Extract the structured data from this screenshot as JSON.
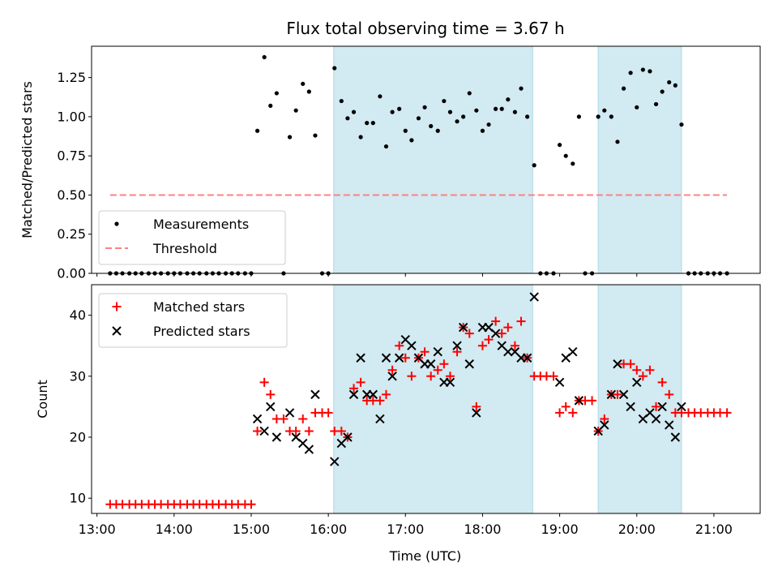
{
  "chart_data": [
    {
      "type": "scatter",
      "title": "Flux total observing time = 3.67 h",
      "xlabel": "",
      "ylabel": "Matched/Predicted stars",
      "xlim": [
        12.93,
        21.6
      ],
      "ylim": [
        0,
        1.45
      ],
      "yticks": [
        "0.00",
        "0.25",
        "0.50",
        "0.75",
        "1.00",
        "1.25"
      ],
      "shaded_regions": [
        [
          16.07,
          18.65
        ],
        [
          19.5,
          20.58
        ]
      ],
      "shaded_color": "#add8e6",
      "legend": {
        "position": "lower-left",
        "entries": [
          "Measurements",
          "Threshold"
        ]
      },
      "threshold": {
        "name": "Threshold",
        "value": 0.5,
        "x_range": [
          13.17,
          21.17
        ],
        "color": "#ff8080"
      },
      "series": [
        {
          "name": "Measurements",
          "marker": "dot",
          "color": "#000000",
          "points": [
            [
              13.17,
              0
            ],
            [
              13.25,
              0
            ],
            [
              13.33,
              0
            ],
            [
              13.42,
              0
            ],
            [
              13.5,
              0
            ],
            [
              13.58,
              0
            ],
            [
              13.67,
              0
            ],
            [
              13.75,
              0
            ],
            [
              13.83,
              0
            ],
            [
              13.92,
              0
            ],
            [
              14.0,
              0
            ],
            [
              14.08,
              0
            ],
            [
              14.17,
              0
            ],
            [
              14.25,
              0
            ],
            [
              14.33,
              0
            ],
            [
              14.42,
              0
            ],
            [
              14.5,
              0
            ],
            [
              14.58,
              0
            ],
            [
              14.67,
              0
            ],
            [
              14.75,
              0
            ],
            [
              14.83,
              0
            ],
            [
              14.92,
              0
            ],
            [
              15.0,
              0
            ],
            [
              15.08,
              0.91
            ],
            [
              15.17,
              1.38
            ],
            [
              15.25,
              1.07
            ],
            [
              15.33,
              1.15
            ],
            [
              15.42,
              0
            ],
            [
              15.5,
              0.87
            ],
            [
              15.58,
              1.04
            ],
            [
              15.67,
              1.21
            ],
            [
              15.75,
              1.16
            ],
            [
              15.83,
              0.88
            ],
            [
              15.92,
              0
            ],
            [
              16.0,
              0
            ],
            [
              16.08,
              1.31
            ],
            [
              16.17,
              1.1
            ],
            [
              16.25,
              0.99
            ],
            [
              16.33,
              1.03
            ],
            [
              16.42,
              0.87
            ],
            [
              16.5,
              0.96
            ],
            [
              16.58,
              0.96
            ],
            [
              16.67,
              1.13
            ],
            [
              16.75,
              0.81
            ],
            [
              16.83,
              1.03
            ],
            [
              16.92,
              1.05
            ],
            [
              17.0,
              0.91
            ],
            [
              17.08,
              0.85
            ],
            [
              17.17,
              0.99
            ],
            [
              17.25,
              1.06
            ],
            [
              17.33,
              0.94
            ],
            [
              17.42,
              0.91
            ],
            [
              17.5,
              1.1
            ],
            [
              17.58,
              1.03
            ],
            [
              17.67,
              0.97
            ],
            [
              17.75,
              1.0
            ],
            [
              17.83,
              1.15
            ],
            [
              17.92,
              1.04
            ],
            [
              18.0,
              0.91
            ],
            [
              18.08,
              0.95
            ],
            [
              18.17,
              1.05
            ],
            [
              18.25,
              1.05
            ],
            [
              18.33,
              1.11
            ],
            [
              18.42,
              1.03
            ],
            [
              18.5,
              1.18
            ],
            [
              18.58,
              1.0
            ],
            [
              18.67,
              0.69
            ],
            [
              18.75,
              0
            ],
            [
              18.83,
              0
            ],
            [
              18.92,
              0
            ],
            [
              19.0,
              0.82
            ],
            [
              19.08,
              0.75
            ],
            [
              19.17,
              0.7
            ],
            [
              19.25,
              1.0
            ],
            [
              19.33,
              0
            ],
            [
              19.42,
              0
            ],
            [
              19.5,
              1.0
            ],
            [
              19.58,
              1.04
            ],
            [
              19.67,
              1.0
            ],
            [
              19.75,
              0.84
            ],
            [
              19.83,
              1.18
            ],
            [
              19.92,
              1.28
            ],
            [
              20.0,
              1.06
            ],
            [
              20.08,
              1.3
            ],
            [
              20.17,
              1.29
            ],
            [
              20.25,
              1.08
            ],
            [
              20.33,
              1.16
            ],
            [
              20.42,
              1.22
            ],
            [
              20.5,
              1.2
            ],
            [
              20.58,
              0.95
            ],
            [
              20.67,
              0
            ],
            [
              20.75,
              0
            ],
            [
              20.83,
              0
            ],
            [
              20.92,
              0
            ],
            [
              21.0,
              0
            ],
            [
              21.08,
              0
            ],
            [
              21.17,
              0
            ]
          ]
        }
      ]
    },
    {
      "type": "scatter",
      "title": "",
      "xlabel": "Time (UTC)",
      "ylabel": "Count",
      "xlim": [
        12.93,
        21.6
      ],
      "ylim": [
        7.5,
        45
      ],
      "yticks": [
        "10",
        "20",
        "30",
        "40"
      ],
      "xticks": [
        {
          "value": 13,
          "label": "13:00"
        },
        {
          "value": 14,
          "label": "14:00"
        },
        {
          "value": 15,
          "label": "15:00"
        },
        {
          "value": 16,
          "label": "16:00"
        },
        {
          "value": 17,
          "label": "17:00"
        },
        {
          "value": 18,
          "label": "18:00"
        },
        {
          "value": 19,
          "label": "19:00"
        },
        {
          "value": 20,
          "label": "20:00"
        },
        {
          "value": 21,
          "label": "21:00"
        }
      ],
      "shaded_regions": [
        [
          16.07,
          18.65
        ],
        [
          19.5,
          20.58
        ]
      ],
      "shaded_color": "#add8e6",
      "legend": {
        "position": "top-left",
        "entries": [
          "Matched stars",
          "Predicted stars"
        ]
      },
      "series": [
        {
          "name": "Matched stars",
          "marker": "plus",
          "color": "#ff0000",
          "points": [
            [
              13.17,
              9
            ],
            [
              13.25,
              9
            ],
            [
              13.33,
              9
            ],
            [
              13.42,
              9
            ],
            [
              13.5,
              9
            ],
            [
              13.58,
              9
            ],
            [
              13.67,
              9
            ],
            [
              13.75,
              9
            ],
            [
              13.83,
              9
            ],
            [
              13.92,
              9
            ],
            [
              14.0,
              9
            ],
            [
              14.08,
              9
            ],
            [
              14.17,
              9
            ],
            [
              14.25,
              9
            ],
            [
              14.33,
              9
            ],
            [
              14.42,
              9
            ],
            [
              14.5,
              9
            ],
            [
              14.58,
              9
            ],
            [
              14.67,
              9
            ],
            [
              14.75,
              9
            ],
            [
              14.83,
              9
            ],
            [
              14.92,
              9
            ],
            [
              15.0,
              9
            ],
            [
              15.08,
              21
            ],
            [
              15.17,
              29
            ],
            [
              15.25,
              27
            ],
            [
              15.33,
              23
            ],
            [
              15.42,
              23
            ],
            [
              15.5,
              21
            ],
            [
              15.58,
              21
            ],
            [
              15.67,
              23
            ],
            [
              15.75,
              21
            ],
            [
              15.83,
              24
            ],
            [
              15.92,
              24
            ],
            [
              16.0,
              24
            ],
            [
              16.08,
              21
            ],
            [
              16.17,
              21
            ],
            [
              16.25,
              20
            ],
            [
              16.33,
              28
            ],
            [
              16.42,
              29
            ],
            [
              16.5,
              26
            ],
            [
              16.58,
              26
            ],
            [
              16.67,
              26
            ],
            [
              16.75,
              27
            ],
            [
              16.83,
              31
            ],
            [
              16.92,
              35
            ],
            [
              17.0,
              33
            ],
            [
              17.08,
              30
            ],
            [
              17.17,
              33
            ],
            [
              17.25,
              34
            ],
            [
              17.33,
              30
            ],
            [
              17.42,
              31
            ],
            [
              17.5,
              32
            ],
            [
              17.58,
              30
            ],
            [
              17.67,
              34
            ],
            [
              17.75,
              38
            ],
            [
              17.83,
              37
            ],
            [
              17.92,
              25
            ],
            [
              18.0,
              35
            ],
            [
              18.08,
              36
            ],
            [
              18.17,
              39
            ],
            [
              18.25,
              37
            ],
            [
              18.33,
              38
            ],
            [
              18.42,
              35
            ],
            [
              18.5,
              39
            ],
            [
              18.58,
              33
            ],
            [
              18.67,
              30
            ],
            [
              18.75,
              30
            ],
            [
              18.83,
              30
            ],
            [
              18.92,
              30
            ],
            [
              19.0,
              24
            ],
            [
              19.08,
              25
            ],
            [
              19.17,
              24
            ],
            [
              19.25,
              26
            ],
            [
              19.33,
              26
            ],
            [
              19.42,
              26
            ],
            [
              19.5,
              21
            ],
            [
              19.58,
              23
            ],
            [
              19.67,
              27
            ],
            [
              19.75,
              27
            ],
            [
              19.83,
              32
            ],
            [
              19.92,
              32
            ],
            [
              20.0,
              31
            ],
            [
              20.08,
              30
            ],
            [
              20.17,
              31
            ],
            [
              20.25,
              25
            ],
            [
              20.33,
              29
            ],
            [
              20.42,
              27
            ],
            [
              20.5,
              24
            ],
            [
              20.58,
              24
            ],
            [
              20.67,
              24
            ],
            [
              20.75,
              24
            ],
            [
              20.83,
              24
            ],
            [
              20.92,
              24
            ],
            [
              21.0,
              24
            ],
            [
              21.08,
              24
            ],
            [
              21.17,
              24
            ]
          ]
        },
        {
          "name": "Predicted stars",
          "marker": "x",
          "color": "#000000",
          "points": [
            [
              15.08,
              23
            ],
            [
              15.17,
              21
            ],
            [
              15.25,
              25
            ],
            [
              15.33,
              20
            ],
            [
              15.5,
              24
            ],
            [
              15.58,
              20
            ],
            [
              15.67,
              19
            ],
            [
              15.75,
              18
            ],
            [
              15.83,
              27
            ],
            [
              16.08,
              16
            ],
            [
              16.17,
              19
            ],
            [
              16.25,
              20
            ],
            [
              16.33,
              27
            ],
            [
              16.42,
              33
            ],
            [
              16.5,
              27
            ],
            [
              16.58,
              27
            ],
            [
              16.67,
              23
            ],
            [
              16.75,
              33
            ],
            [
              16.83,
              30
            ],
            [
              16.92,
              33
            ],
            [
              17.0,
              36
            ],
            [
              17.08,
              35
            ],
            [
              17.17,
              33
            ],
            [
              17.25,
              32
            ],
            [
              17.33,
              32
            ],
            [
              17.42,
              34
            ],
            [
              17.5,
              29
            ],
            [
              17.58,
              29
            ],
            [
              17.67,
              35
            ],
            [
              17.75,
              38
            ],
            [
              17.83,
              32
            ],
            [
              17.92,
              24
            ],
            [
              18.0,
              38
            ],
            [
              18.08,
              38
            ],
            [
              18.17,
              37
            ],
            [
              18.25,
              35
            ],
            [
              18.33,
              34
            ],
            [
              18.42,
              34
            ],
            [
              18.5,
              33
            ],
            [
              18.58,
              33
            ],
            [
              18.67,
              43
            ],
            [
              19.0,
              29
            ],
            [
              19.08,
              33
            ],
            [
              19.17,
              34
            ],
            [
              19.25,
              26
            ],
            [
              19.5,
              21
            ],
            [
              19.58,
              22
            ],
            [
              19.67,
              27
            ],
            [
              19.75,
              32
            ],
            [
              19.83,
              27
            ],
            [
              19.92,
              25
            ],
            [
              20.0,
              29
            ],
            [
              20.08,
              23
            ],
            [
              20.17,
              24
            ],
            [
              20.25,
              23
            ],
            [
              20.33,
              25
            ],
            [
              20.42,
              22
            ],
            [
              20.5,
              20
            ],
            [
              20.58,
              25
            ]
          ]
        }
      ]
    }
  ]
}
